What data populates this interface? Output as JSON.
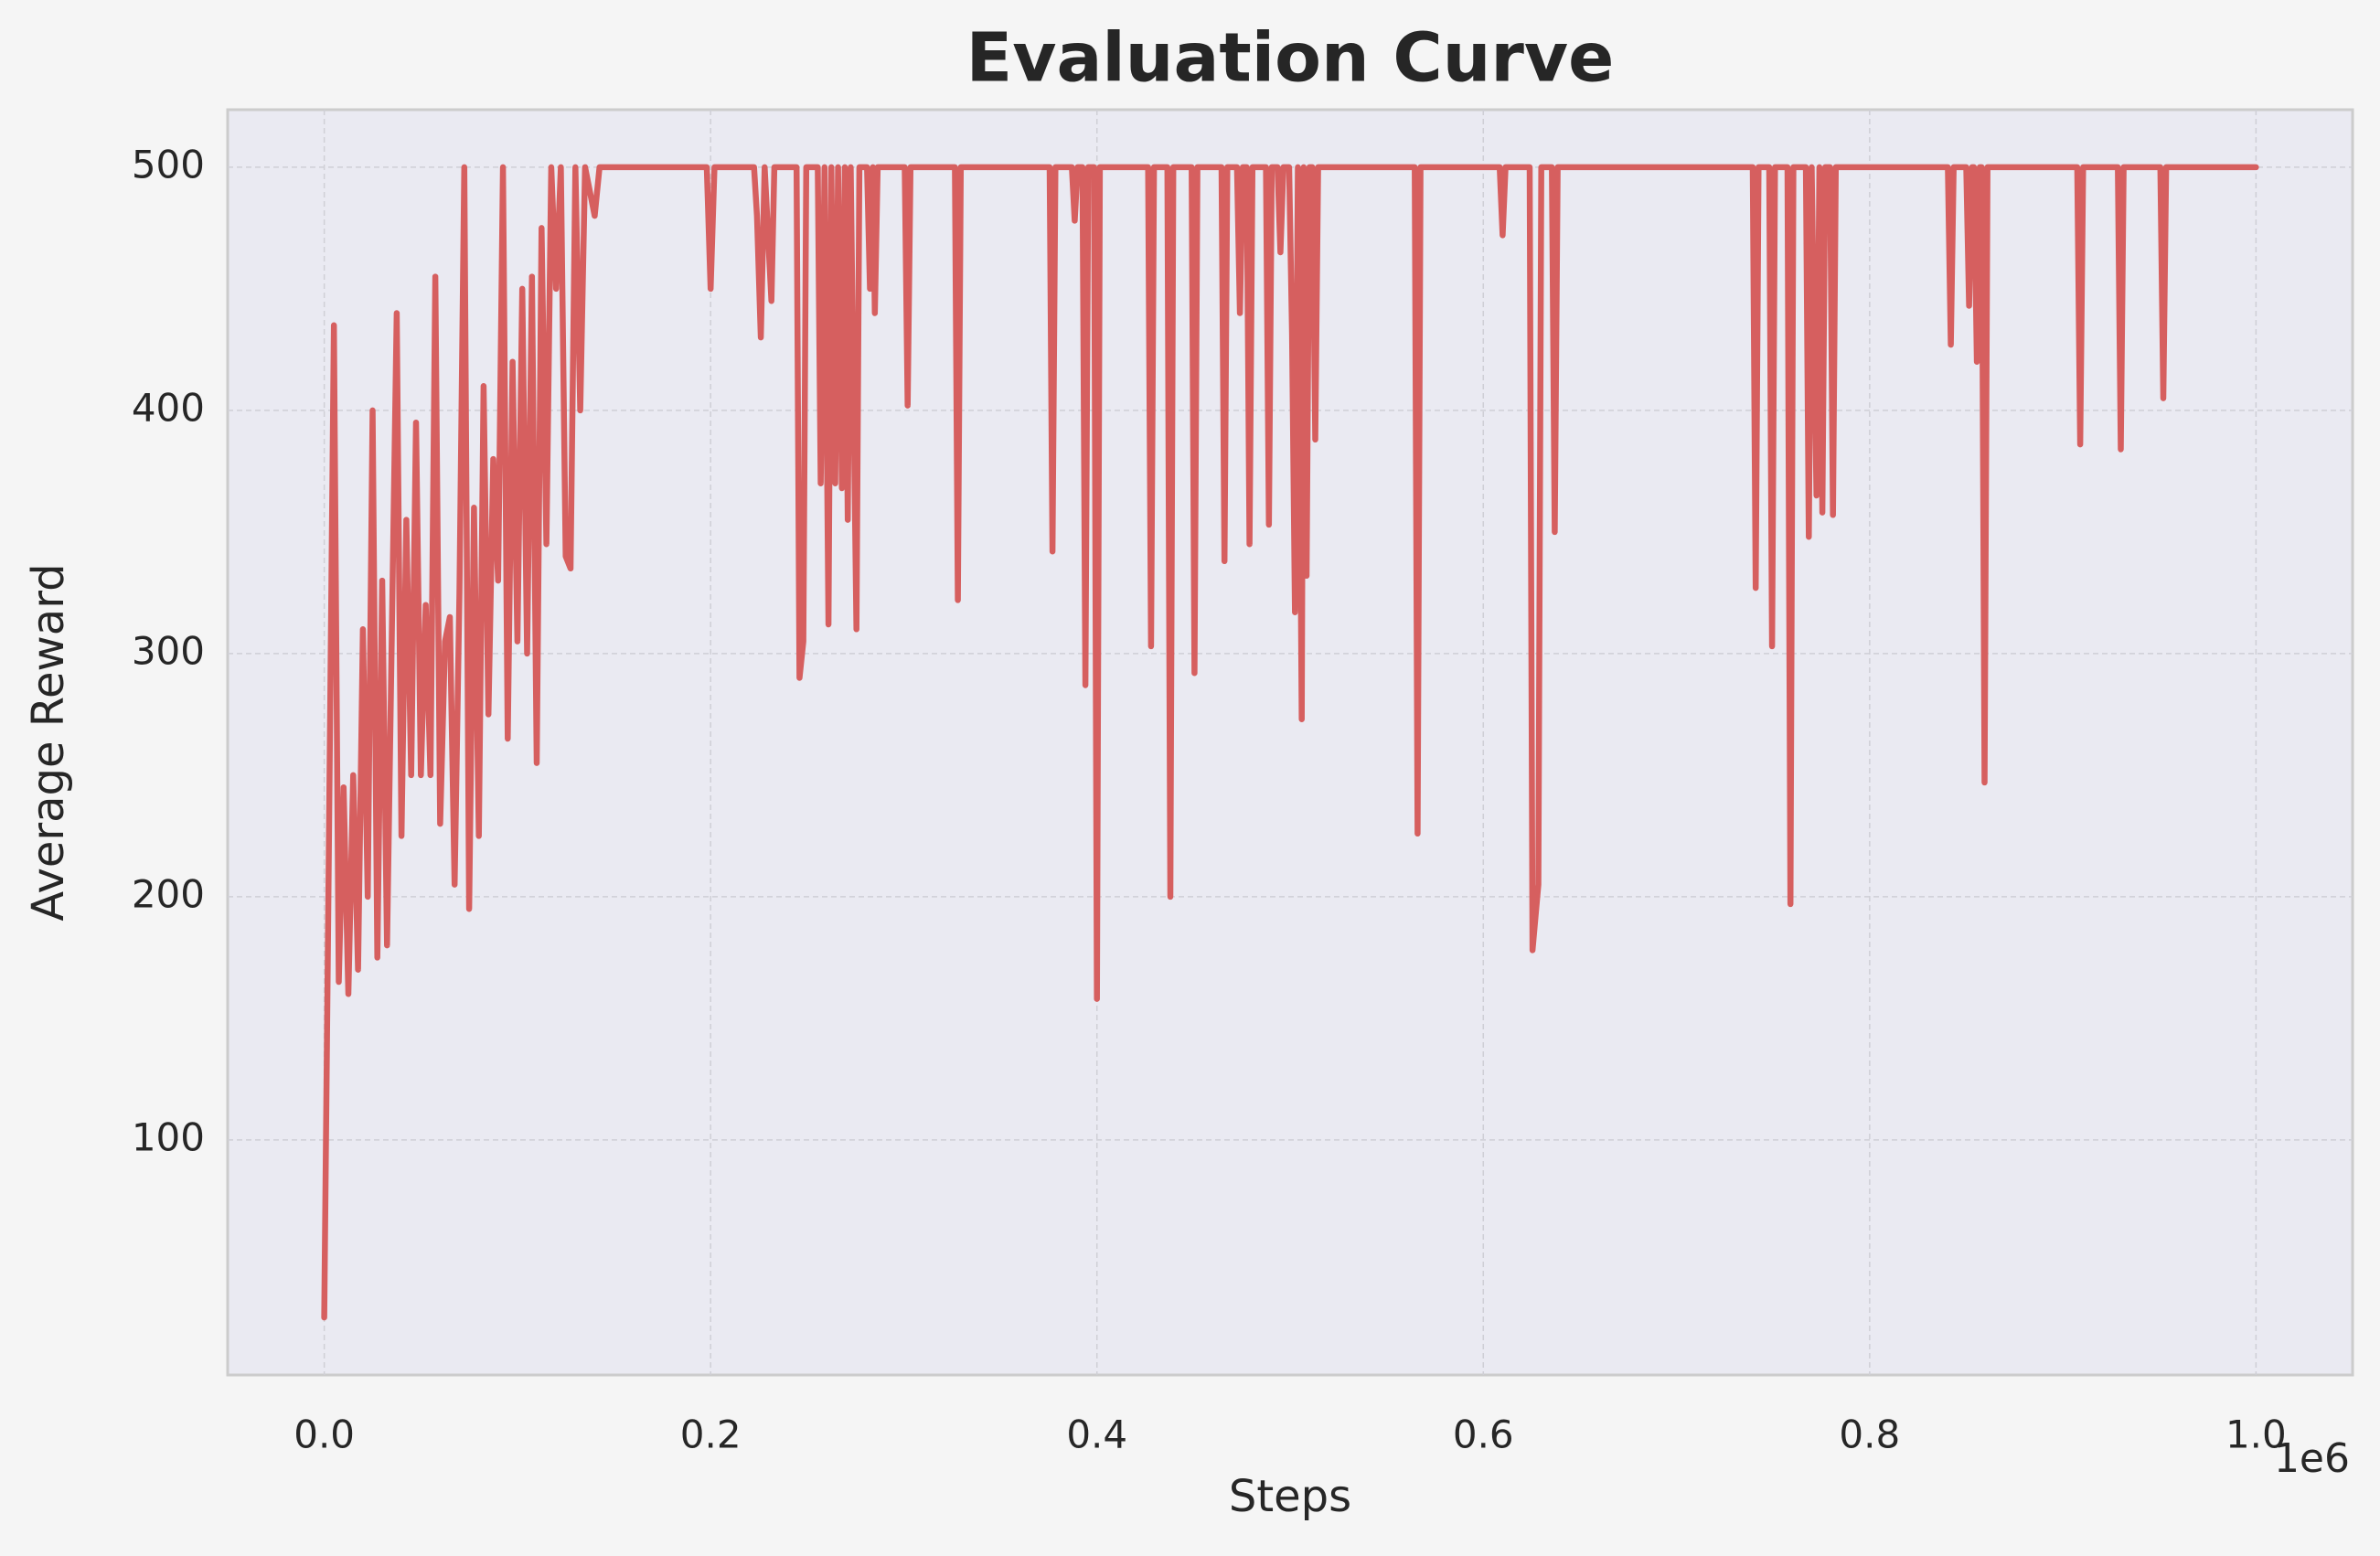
{
  "chart_data": {
    "type": "line",
    "title": "Evaluation Curve",
    "x_label": "Steps",
    "y_label": "Average Reward",
    "x_offset_label": "1e6",
    "color": "#d65f5f",
    "grid": true,
    "xlim": [
      -50000,
      1050000
    ],
    "ylim": [
      3.35,
      523.65
    ],
    "xticks": [
      {
        "value": 0,
        "label": "0.0"
      },
      {
        "value": 200000,
        "label": "0.2"
      },
      {
        "value": 400000,
        "label": "0.4"
      },
      {
        "value": 600000,
        "label": "0.6"
      },
      {
        "value": 800000,
        "label": "0.8"
      },
      {
        "value": 1000000,
        "label": "1.0"
      }
    ],
    "yticks": [
      100,
      200,
      300,
      400,
      500
    ],
    "x": [
      0,
      2000,
      5000,
      7500,
      10000,
      12500,
      15000,
      17500,
      20000,
      22500,
      25000,
      27500,
      30000,
      32500,
      35000,
      37500,
      40000,
      42500,
      45000,
      47500,
      50000,
      52500,
      55000,
      57500,
      60000,
      62500,
      65000,
      67500,
      70000,
      72500,
      75000,
      77500,
      80000,
      82500,
      85000,
      87500,
      90000,
      92500,
      95000,
      97500,
      100000,
      102500,
      105000,
      107500,
      110000,
      112500,
      115000,
      117500,
      120000,
      122500,
      125000,
      127500,
      130000,
      132500,
      135000,
      140000,
      142500,
      198000,
      200000,
      202000,
      222500,
      224000,
      226000,
      228000,
      231500,
      233000,
      244500,
      246000,
      248000,
      249500,
      255500,
      257000,
      259000,
      261000,
      262500,
      264500,
      266000,
      268000,
      269500,
      271000,
      272500,
      275500,
      277000,
      281000,
      282500,
      284000,
      285000,
      286500,
      300500,
      302000,
      303500,
      326500,
      328000,
      329500,
      375500,
      377000,
      378500,
      387000,
      388500,
      390000,
      392500,
      394000,
      395500,
      398500,
      400000,
      401500,
      426500,
      428000,
      429500,
      436500,
      438000,
      439500,
      449000,
      450500,
      452000,
      464500,
      466000,
      467500,
      472500,
      474000,
      475500,
      477500,
      479000,
      480500,
      487500,
      489000,
      490500,
      493500,
      495000,
      496500,
      499500,
      501000,
      502500,
      504000,
      506000,
      507000,
      508500,
      510000,
      511500,
      513000,
      514500,
      564500,
      566000,
      567500,
      608500,
      610000,
      611500,
      624000,
      625500,
      628500,
      630000,
      635500,
      637000,
      638500,
      739500,
      741000,
      742500,
      748000,
      749500,
      751000,
      757500,
      759000,
      760500,
      767000,
      768500,
      770000,
      772500,
      774000,
      775500,
      777000,
      779500,
      781000,
      782500,
      840500,
      842000,
      843500,
      850000,
      851500,
      853000,
      854000,
      855500,
      857000,
      858000,
      859500,
      861000,
      907500,
      909000,
      910500,
      928500,
      930000,
      931500,
      950500,
      952000,
      953500,
      1000000
    ],
    "values": [
      27,
      190,
      435,
      165,
      245,
      160,
      250,
      170,
      310,
      200,
      400,
      175,
      330,
      180,
      310,
      440,
      225,
      355,
      250,
      395,
      250,
      320,
      250,
      455,
      230,
      305,
      315,
      205,
      325,
      500,
      195,
      360,
      225,
      410,
      275,
      380,
      330,
      500,
      265,
      420,
      305,
      450,
      300,
      455,
      255,
      475,
      345,
      500,
      450,
      500,
      340,
      335,
      500,
      400,
      500,
      480,
      500,
      500,
      450,
      500,
      500,
      480,
      430,
      500,
      445,
      500,
      500,
      290,
      305,
      500,
      500,
      370,
      500,
      312,
      500,
      370,
      500,
      368,
      500,
      355,
      500,
      310,
      500,
      500,
      450,
      500,
      440,
      500,
      500,
      402,
      500,
      500,
      322,
      500,
      500,
      342,
      500,
      500,
      478,
      500,
      500,
      287,
      500,
      500,
      158,
      500,
      500,
      303,
      500,
      500,
      200,
      500,
      500,
      292,
      500,
      500,
      338,
      500,
      500,
      440,
      500,
      500,
      345,
      500,
      500,
      353,
      500,
      500,
      465,
      500,
      500,
      432,
      317,
      500,
      273,
      500,
      332,
      500,
      500,
      388,
      500,
      500,
      226,
      500,
      500,
      472,
      500,
      500,
      178,
      205,
      500,
      500,
      350,
      500,
      500,
      327,
      500,
      500,
      303,
      500,
      500,
      197,
      500,
      500,
      348,
      500,
      365,
      500,
      358,
      500,
      500,
      357,
      500,
      500,
      427,
      500,
      500,
      443,
      500,
      500,
      420,
      500,
      500,
      247,
      500,
      500,
      386,
      500,
      500,
      384,
      500,
      500,
      405,
      500,
      500
    ]
  }
}
